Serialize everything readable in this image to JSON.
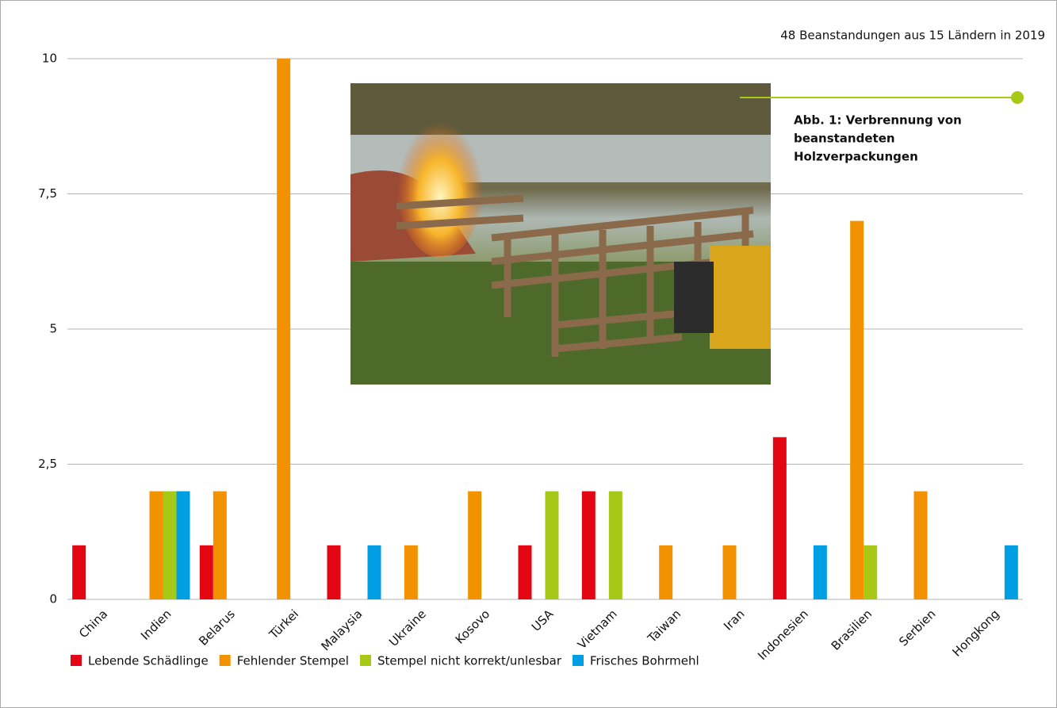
{
  "chart_data": {
    "type": "bar",
    "subtitle": "48 Beanstandungen aus 15 Ländern in 2019",
    "annotation": [
      "Abb. 1: Verbrennung von",
      "beanstandeten",
      "Holzverpackungen"
    ],
    "categories": [
      "China",
      "Indien",
      "Belarus",
      "Türkei",
      "Malaysia",
      "Ukraine",
      "Kosovo",
      "USA",
      "Vietnam",
      "Taiwan",
      "Iran",
      "Indonesien",
      "Brasilien",
      "Serbien",
      "Hongkong"
    ],
    "series": [
      {
        "name": "Lebende Schädlinge",
        "color": "#e30613",
        "values": [
          1,
          0,
          1,
          0,
          1,
          0,
          0,
          1,
          2,
          0,
          0,
          3,
          0,
          0,
          0
        ]
      },
      {
        "name": "Fehlender Stempel",
        "color": "#f39200",
        "values": [
          0,
          2,
          2,
          10,
          0,
          1,
          2,
          0,
          0,
          1,
          1,
          0,
          7,
          2,
          0
        ]
      },
      {
        "name": "Stempel nicht korrekt/unlesbar",
        "color": "#a8c817",
        "values": [
          0,
          2,
          0,
          0,
          0,
          0,
          0,
          2,
          2,
          0,
          0,
          0,
          1,
          0,
          0
        ]
      },
      {
        "name": "Frisches Bohrmehl",
        "color": "#009fe3",
        "values": [
          0,
          2,
          0,
          0,
          1,
          0,
          0,
          0,
          0,
          0,
          0,
          1,
          0,
          0,
          1
        ]
      }
    ],
    "ylim": [
      0,
      10
    ],
    "yticks": [
      0,
      {
        "value": 2.5,
        "label": "2,5"
      },
      5,
      {
        "value": 7.5,
        "label": "7,5"
      },
      10
    ],
    "grid": true
  }
}
